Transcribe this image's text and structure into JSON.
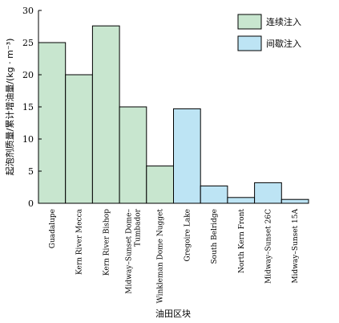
{
  "chart_data": {
    "type": "bar",
    "title": "",
    "xlabel": "油田区块",
    "ylabel": "起泡剂质量/累计增油量/(kg · m⁻³)",
    "ylim": [
      0,
      30
    ],
    "yticks": [
      0,
      5,
      10,
      15,
      20,
      25,
      30
    ],
    "grid": false,
    "legend_position": "top-right",
    "categories": [
      [
        "Guadalupe"
      ],
      [
        "Kern River Mecca"
      ],
      [
        "Kern River Bishop"
      ],
      [
        "Midway–Sunset Dome–",
        "Tumbador"
      ],
      [
        "Winkleman Dome Nugget"
      ],
      [
        "Gregoire Lake"
      ],
      [
        "South Belridge"
      ],
      [
        "North Kern Front"
      ],
      [
        "Midway–Sunset 26C"
      ],
      [
        "Midway–Sunset 15A"
      ]
    ],
    "values": [
      25,
      20,
      27.6,
      15,
      5.8,
      14.7,
      2.7,
      0.9,
      3.2,
      0.6
    ],
    "groups": [
      "连续注入",
      "连续注入",
      "连续注入",
      "连续注入",
      "连续注入",
      "间歇注入",
      "间歇注入",
      "间歇注入",
      "间歇注入",
      "间歇注入"
    ],
    "series": [
      {
        "name": "连续注入",
        "color": "#c8e6cf"
      },
      {
        "name": "间歇注入",
        "color": "#bde4f4"
      }
    ],
    "colors": {
      "axis": "#000000",
      "bar_stroke": "#000000"
    }
  }
}
